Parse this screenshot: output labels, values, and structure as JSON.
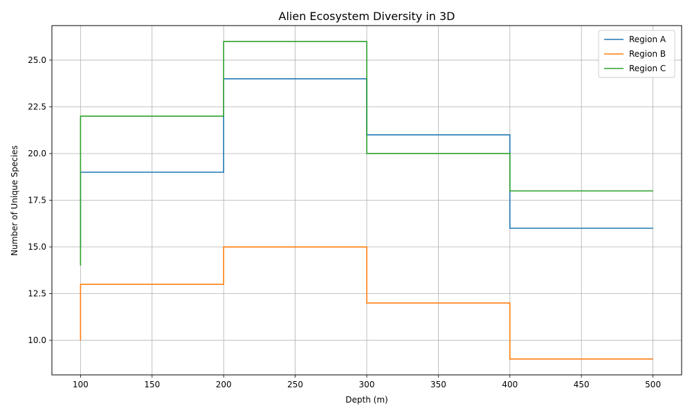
{
  "chart_data": {
    "type": "line",
    "step": "pre",
    "title": "Alien Ecosystem Diversity in 3D",
    "xlabel": "Depth (m)",
    "ylabel": "Number of Unique Species",
    "x": [
      100,
      200,
      300,
      400,
      500
    ],
    "xlim": [
      80,
      520
    ],
    "ylim": [
      8.15,
      26.85
    ],
    "xticks": [
      100,
      150,
      200,
      250,
      300,
      350,
      400,
      450,
      500
    ],
    "xtick_labels": [
      "100",
      "150",
      "200",
      "250",
      "300",
      "350",
      "400",
      "450",
      "500"
    ],
    "yticks": [
      10.0,
      12.5,
      15.0,
      17.5,
      20.0,
      22.5,
      25.0
    ],
    "ytick_labels": [
      "10.0",
      "12.5",
      "15.0",
      "17.5",
      "20.0",
      "22.5",
      "25.0"
    ],
    "grid": true,
    "legend_position": "top-right",
    "series": [
      {
        "name": "Region A",
        "color": "#1f77b4",
        "values": [
          15,
          19,
          24,
          21,
          16
        ]
      },
      {
        "name": "Region B",
        "color": "#ff7f0e",
        "values": [
          10,
          13,
          15,
          12,
          9
        ]
      },
      {
        "name": "Region C",
        "color": "#2ca02c",
        "values": [
          14,
          22,
          26,
          20,
          18
        ]
      }
    ]
  }
}
